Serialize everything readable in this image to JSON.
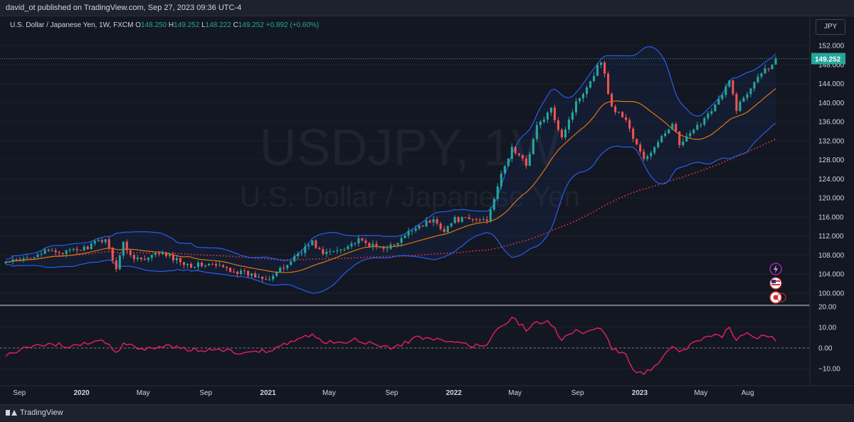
{
  "header": {
    "publisher": "david_ot published on TradingView.com, Sep 27, 2023 09:36 UTC-4"
  },
  "legend": {
    "symbol": "U.S. Dollar / Japanese Yen, 1W, FXCM",
    "open_label": "O",
    "open": "148.250",
    "high_label": "H",
    "high": "149.252",
    "low_label": "L",
    "low": "148.222",
    "close_label": "C",
    "close": "149.252",
    "change": "+0.892 (+0.60%)"
  },
  "currency_button": "JPY",
  "watermark": {
    "ticker": "USDJPY, 1W",
    "name": "U.S. Dollar / Japanese Yen"
  },
  "footer": {
    "brand": "TradingView"
  },
  "colors": {
    "background": "#131722",
    "up": "#26a69a",
    "down": "#ef5350",
    "bollinger": "#2962ff",
    "sma": "#f57c00",
    "sma_long": "#f23645",
    "oscillator": "#e91e63"
  },
  "icons": [
    "lightning-icon",
    "us-flag-icon",
    "japan-flag-icon"
  ],
  "chart_data": [
    {
      "type": "candlestick",
      "timeframe": "1W",
      "ylim": [
        98,
        154
      ],
      "y_ticks": [
        "152.000",
        "148.000",
        "144.000",
        "140.000",
        "136.000",
        "132.000",
        "128.000",
        "124.000",
        "120.000",
        "116.000",
        "112.000",
        "108.000",
        "104.000",
        "100.000"
      ],
      "x_ticks": [
        "Sep",
        "2020",
        "May",
        "Sep",
        "2021",
        "May",
        "Sep",
        "2022",
        "May",
        "Sep",
        "2023",
        "May",
        "Aug"
      ],
      "last_price": "149.252",
      "close_anchors": [
        {
          "date": "2019-08-05",
          "value": 106.5
        },
        {
          "date": "2019-09-02",
          "value": 106.8
        },
        {
          "date": "2019-10-07",
          "value": 108.4
        },
        {
          "date": "2019-11-04",
          "value": 108.8
        },
        {
          "date": "2019-12-02",
          "value": 108.6
        },
        {
          "date": "2020-01-06",
          "value": 109.4
        },
        {
          "date": "2020-02-17",
          "value": 111.5
        },
        {
          "date": "2020-03-09",
          "value": 105.3
        },
        {
          "date": "2020-03-23",
          "value": 110.5
        },
        {
          "date": "2020-04-06",
          "value": 108.0
        },
        {
          "date": "2020-05-04",
          "value": 106.8
        },
        {
          "date": "2020-06-01",
          "value": 108.5
        },
        {
          "date": "2020-07-06",
          "value": 107.0
        },
        {
          "date": "2020-08-03",
          "value": 105.9
        },
        {
          "date": "2020-09-07",
          "value": 106.0
        },
        {
          "date": "2020-10-05",
          "value": 105.4
        },
        {
          "date": "2020-11-02",
          "value": 104.5
        },
        {
          "date": "2020-12-07",
          "value": 103.6
        },
        {
          "date": "2021-01-04",
          "value": 103.3
        },
        {
          "date": "2021-02-01",
          "value": 105.3
        },
        {
          "date": "2021-03-01",
          "value": 108.4
        },
        {
          "date": "2021-03-29",
          "value": 110.7
        },
        {
          "date": "2021-04-19",
          "value": 108.2
        },
        {
          "date": "2021-05-17",
          "value": 109.1
        },
        {
          "date": "2021-06-28",
          "value": 111.0
        },
        {
          "date": "2021-08-02",
          "value": 109.6
        },
        {
          "date": "2021-09-06",
          "value": 109.9
        },
        {
          "date": "2021-10-18",
          "value": 114.0
        },
        {
          "date": "2021-11-22",
          "value": 115.3
        },
        {
          "date": "2021-12-13",
          "value": 113.3
        },
        {
          "date": "2022-01-03",
          "value": 115.5
        },
        {
          "date": "2022-02-07",
          "value": 115.4
        },
        {
          "date": "2022-03-07",
          "value": 115.5
        },
        {
          "date": "2022-03-28",
          "value": 122.6
        },
        {
          "date": "2022-04-25",
          "value": 130.5
        },
        {
          "date": "2022-05-23",
          "value": 127.0
        },
        {
          "date": "2022-06-13",
          "value": 135.0
        },
        {
          "date": "2022-07-11",
          "value": 138.5
        },
        {
          "date": "2022-08-01",
          "value": 133.0
        },
        {
          "date": "2022-08-29",
          "value": 140.0
        },
        {
          "date": "2022-09-26",
          "value": 144.7
        },
        {
          "date": "2022-10-17",
          "value": 149.0
        },
        {
          "date": "2022-11-07",
          "value": 139.0
        },
        {
          "date": "2022-12-05",
          "value": 136.5
        },
        {
          "date": "2022-12-19",
          "value": 132.5
        },
        {
          "date": "2023-01-09",
          "value": 128.0
        },
        {
          "date": "2023-02-06",
          "value": 131.4
        },
        {
          "date": "2023-03-06",
          "value": 136.0
        },
        {
          "date": "2023-03-20",
          "value": 131.0
        },
        {
          "date": "2023-04-17",
          "value": 134.0
        },
        {
          "date": "2023-05-15",
          "value": 137.8
        },
        {
          "date": "2023-06-12",
          "value": 141.5
        },
        {
          "date": "2023-06-26",
          "value": 144.5
        },
        {
          "date": "2023-07-10",
          "value": 138.8
        },
        {
          "date": "2023-07-31",
          "value": 142.0
        },
        {
          "date": "2023-08-21",
          "value": 146.0
        },
        {
          "date": "2023-09-11",
          "value": 147.5
        },
        {
          "date": "2023-09-25",
          "value": 149.25
        }
      ],
      "overlays": [
        "bollinger-bands",
        "sma-20",
        "sma-long-dotted"
      ]
    },
    {
      "type": "line",
      "name": "oscillator",
      "ylim": [
        -15,
        20
      ],
      "y_ticks": [
        "20.00",
        "10.00",
        "0.00",
        "−10.00"
      ],
      "zero_line": true,
      "anchors": [
        {
          "date": "2019-08-05",
          "value": -3
        },
        {
          "date": "2019-09-02",
          "value": -1
        },
        {
          "date": "2019-10-07",
          "value": 1
        },
        {
          "date": "2019-11-04",
          "value": 2
        },
        {
          "date": "2019-12-02",
          "value": 1
        },
        {
          "date": "2020-01-06",
          "value": 2
        },
        {
          "date": "2020-02-17",
          "value": 3
        },
        {
          "date": "2020-03-09",
          "value": -2
        },
        {
          "date": "2020-03-23",
          "value": 2
        },
        {
          "date": "2020-04-06",
          "value": 1
        },
        {
          "date": "2020-05-04",
          "value": -1
        },
        {
          "date": "2020-06-01",
          "value": 1
        },
        {
          "date": "2020-07-06",
          "value": 0
        },
        {
          "date": "2020-08-03",
          "value": -1
        },
        {
          "date": "2020-09-07",
          "value": -1
        },
        {
          "date": "2020-10-05",
          "value": -1
        },
        {
          "date": "2020-11-02",
          "value": -2
        },
        {
          "date": "2020-12-07",
          "value": -2
        },
        {
          "date": "2021-01-04",
          "value": -1
        },
        {
          "date": "2021-02-01",
          "value": 2
        },
        {
          "date": "2021-03-01",
          "value": 5
        },
        {
          "date": "2021-03-29",
          "value": 6
        },
        {
          "date": "2021-04-19",
          "value": 3
        },
        {
          "date": "2021-05-17",
          "value": 3
        },
        {
          "date": "2021-06-28",
          "value": 4
        },
        {
          "date": "2021-08-02",
          "value": 1
        },
        {
          "date": "2021-09-06",
          "value": 0
        },
        {
          "date": "2021-10-18",
          "value": 5
        },
        {
          "date": "2021-11-22",
          "value": 4
        },
        {
          "date": "2021-12-13",
          "value": 3
        },
        {
          "date": "2022-01-03",
          "value": 3
        },
        {
          "date": "2022-02-07",
          "value": 1
        },
        {
          "date": "2022-03-07",
          "value": 2
        },
        {
          "date": "2022-03-28",
          "value": 9
        },
        {
          "date": "2022-04-25",
          "value": 15
        },
        {
          "date": "2022-05-23",
          "value": 9
        },
        {
          "date": "2022-06-13",
          "value": 13
        },
        {
          "date": "2022-07-11",
          "value": 12
        },
        {
          "date": "2022-08-01",
          "value": 4
        },
        {
          "date": "2022-08-29",
          "value": 8
        },
        {
          "date": "2022-09-26",
          "value": 8
        },
        {
          "date": "2022-10-17",
          "value": 9
        },
        {
          "date": "2022-11-07",
          "value": 0
        },
        {
          "date": "2022-12-05",
          "value": -4
        },
        {
          "date": "2022-12-19",
          "value": -10
        },
        {
          "date": "2023-01-09",
          "value": -13
        },
        {
          "date": "2023-02-06",
          "value": -7
        },
        {
          "date": "2023-03-06",
          "value": 0
        },
        {
          "date": "2023-03-20",
          "value": -2
        },
        {
          "date": "2023-04-17",
          "value": 2
        },
        {
          "date": "2023-05-15",
          "value": 5
        },
        {
          "date": "2023-06-12",
          "value": 6
        },
        {
          "date": "2023-06-26",
          "value": 10
        },
        {
          "date": "2023-07-10",
          "value": 4
        },
        {
          "date": "2023-07-31",
          "value": 7
        },
        {
          "date": "2023-08-21",
          "value": 5
        },
        {
          "date": "2023-09-11",
          "value": 6
        },
        {
          "date": "2023-09-25",
          "value": 4
        }
      ]
    }
  ]
}
